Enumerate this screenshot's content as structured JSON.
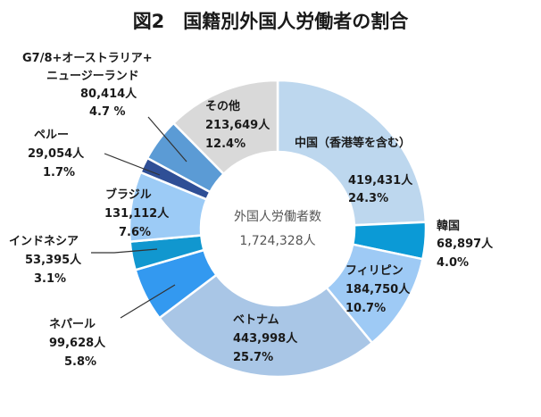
{
  "chart_data": {
    "type": "pie",
    "title": "図2　国籍別外国人労働者の割合",
    "center_label": "外国人労働者数",
    "center_value": "1,724,328人",
    "slices": [
      {
        "name": "中国（香港等を含む）",
        "count": "419,431人",
        "percent": "24.3%",
        "value": 24.3,
        "color": "#bdd7ee"
      },
      {
        "name": "韓国",
        "count": "68,897人",
        "percent": "4.0%",
        "value": 4.0,
        "color": "#0b9ad6"
      },
      {
        "name": "フィリピン",
        "count": "184,750人",
        "percent": "10.7%",
        "value": 10.7,
        "color": "#9ecaf5"
      },
      {
        "name": "ベトナム",
        "count": "443,998人",
        "percent": "25.7%",
        "value": 25.7,
        "color": "#a9c6e6"
      },
      {
        "name": "ネパール",
        "count": "99,628人",
        "percent": "5.8%",
        "value": 5.8,
        "color": "#3399f0"
      },
      {
        "name": "インドネシア",
        "count": "53,395人",
        "percent": "3.1%",
        "value": 3.1,
        "color": "#1197cf"
      },
      {
        "name": "ブラジル",
        "count": "131,112人",
        "percent": "7.6%",
        "value": 7.6,
        "color": "#9ccbf6"
      },
      {
        "name": "ペルー",
        "count": "29,054人",
        "percent": "1.7%",
        "value": 1.7,
        "color": "#2f4f96"
      },
      {
        "name": "G7/8+オーストラリア+",
        "name2": "ニュージーランド",
        "count": "80,414人",
        "percent": "4.7 %",
        "value": 4.7,
        "color": "#5b9bd5"
      },
      {
        "name": "その他",
        "count": "213,649人",
        "percent": "12.4%",
        "value": 12.4,
        "color": "#d9d9d9"
      }
    ]
  }
}
